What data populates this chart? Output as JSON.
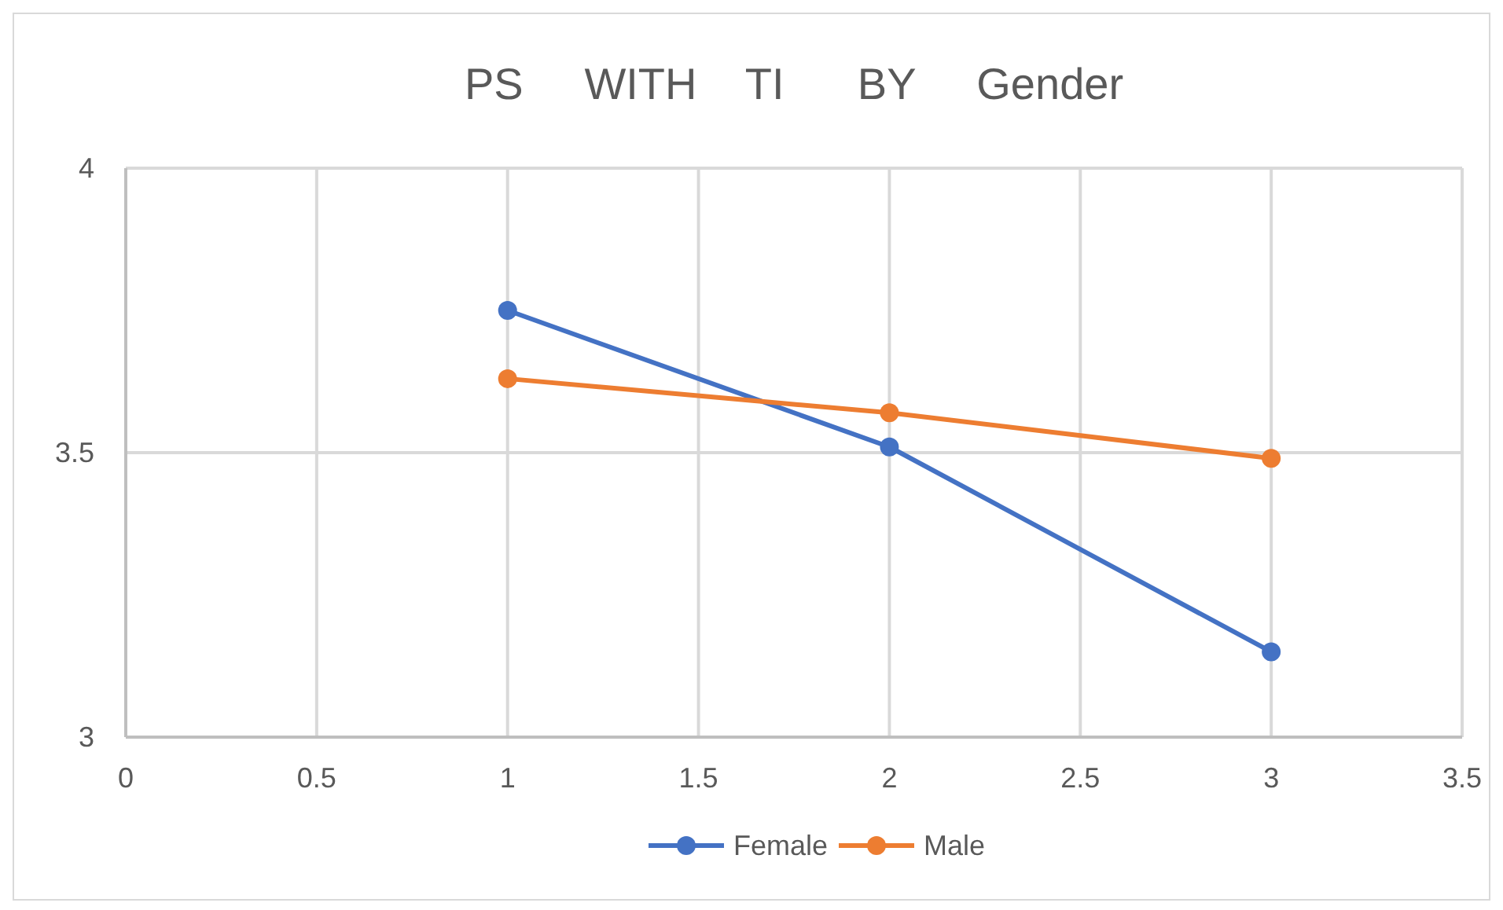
{
  "chart_data": {
    "type": "line",
    "title": "PS     WITH    TI      BY     Gender",
    "x": [
      1,
      2,
      3
    ],
    "series": [
      {
        "name": "Female",
        "color": "#4472c4",
        "values": [
          3.75,
          3.51,
          3.15
        ]
      },
      {
        "name": "Male",
        "color": "#ed7d31",
        "values": [
          3.63,
          3.57,
          3.49
        ]
      }
    ],
    "xlim": [
      0,
      3.5
    ],
    "xticks": [
      0,
      0.5,
      1,
      1.5,
      2,
      2.5,
      3,
      3.5
    ],
    "ylim": [
      3,
      4
    ],
    "yticks": [
      3,
      3.5,
      4
    ],
    "grid": true,
    "legend": "bottom",
    "marker": "circle",
    "line_style": "solid"
  }
}
